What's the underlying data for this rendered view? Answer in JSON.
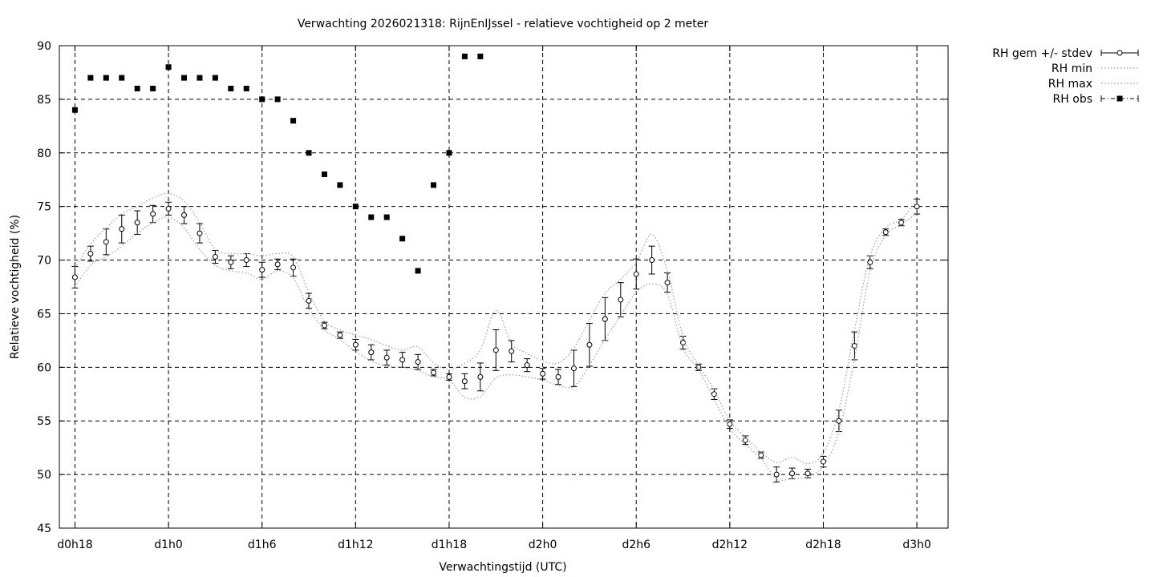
{
  "chart_data": {
    "type": "line",
    "title": "Verwachting 2026021318: RijnEnIJssel - relatieve vochtigheid op 2 meter",
    "xlabel": "Verwachtingstijd (UTC)",
    "ylabel": "Relatieve vochtigheid (%)",
    "xlim": [
      17,
      74
    ],
    "ylim": [
      45,
      90
    ],
    "grid": true,
    "legend_position": "top-right outside",
    "x_ticks": [
      {
        "x": 18,
        "label": "d0h18"
      },
      {
        "x": 24,
        "label": "d1h0"
      },
      {
        "x": 30,
        "label": "d1h6"
      },
      {
        "x": 36,
        "label": "d1h12"
      },
      {
        "x": 42,
        "label": "d1h18"
      },
      {
        "x": 48,
        "label": "d2h0"
      },
      {
        "x": 54,
        "label": "d2h6"
      },
      {
        "x": 60,
        "label": "d2h12"
      },
      {
        "x": 66,
        "label": "d2h18"
      },
      {
        "x": 72,
        "label": "d3h0"
      }
    ],
    "y_ticks": [
      45,
      50,
      55,
      60,
      65,
      70,
      75,
      80,
      85,
      90
    ],
    "series": [
      {
        "name": "RH gem +/- stdev",
        "style": "errorbars-open-circle",
        "x": [
          18,
          19,
          20,
          21,
          22,
          23,
          24,
          25,
          26,
          27,
          28,
          29,
          30,
          31,
          32,
          33,
          34,
          35,
          36,
          37,
          38,
          39,
          40,
          41,
          42,
          43,
          44,
          45,
          46,
          47,
          48,
          49,
          50,
          51,
          52,
          53,
          54,
          55,
          56,
          57,
          58,
          59,
          60,
          61,
          62,
          63,
          64,
          65,
          66,
          67,
          68,
          69,
          70,
          71,
          72
        ],
        "y": [
          68.4,
          70.6,
          71.7,
          72.9,
          73.5,
          74.3,
          74.8,
          74.2,
          72.5,
          70.3,
          69.8,
          70.0,
          69.1,
          69.6,
          69.3,
          66.2,
          63.9,
          63.0,
          62.1,
          61.4,
          60.9,
          60.7,
          60.5,
          59.5,
          59.1,
          58.7,
          59.1,
          61.6,
          61.5,
          60.2,
          59.4,
          59.1,
          59.9,
          62.1,
          64.5,
          66.3,
          68.7,
          70.0,
          67.9,
          62.3,
          60.0,
          57.5,
          54.7,
          53.2,
          51.8,
          50.0,
          50.1,
          50.1,
          51.2,
          55.0,
          62.0,
          69.8,
          72.6,
          73.5,
          75.0
        ],
        "err": [
          1.0,
          0.7,
          1.2,
          1.3,
          1.1,
          0.8,
          0.6,
          0.8,
          0.9,
          0.6,
          0.6,
          0.6,
          0.7,
          0.5,
          0.8,
          0.7,
          0.3,
          0.3,
          0.5,
          0.7,
          0.7,
          0.7,
          0.7,
          0.3,
          0.3,
          0.7,
          1.3,
          1.9,
          1.0,
          0.6,
          0.5,
          0.7,
          1.7,
          2.0,
          2.0,
          1.6,
          1.4,
          1.3,
          0.9,
          0.6,
          0.3,
          0.5,
          0.4,
          0.4,
          0.3,
          0.7,
          0.5,
          0.4,
          0.5,
          1.0,
          1.3,
          0.6,
          0.3,
          0.3,
          0.7
        ]
      },
      {
        "name": "RH min",
        "style": "dotted-line",
        "x": [
          18,
          19,
          20,
          21,
          22,
          23,
          24,
          25,
          26,
          27,
          28,
          29,
          30,
          31,
          32,
          33,
          34,
          35,
          36,
          37,
          38,
          39,
          40,
          41,
          42,
          43,
          44,
          45,
          46,
          47,
          48,
          49,
          50,
          51,
          52,
          53,
          54,
          55,
          56,
          57,
          58,
          59,
          60,
          61,
          62,
          63,
          64,
          65,
          66,
          67,
          68,
          69,
          70,
          71,
          72
        ],
        "y": [
          67.5,
          69.5,
          70.3,
          71.3,
          72.5,
          73.5,
          74.0,
          73.0,
          71.0,
          69.5,
          69.0,
          68.8,
          68.2,
          69.0,
          68.3,
          65.5,
          63.5,
          62.6,
          61.5,
          60.6,
          60.1,
          60.0,
          59.7,
          59.1,
          58.8,
          57.2,
          57.3,
          59.0,
          59.3,
          59.1,
          58.8,
          58.3,
          58.2,
          60.2,
          62.6,
          64.8,
          67.0,
          67.8,
          66.8,
          61.8,
          59.8,
          57.0,
          54.3,
          52.8,
          51.5,
          49.6,
          49.6,
          49.8,
          50.8,
          54.0,
          60.8,
          69.0,
          72.3,
          73.3,
          74.4
        ]
      },
      {
        "name": "RH max",
        "style": "dotted-line",
        "x": [
          18,
          19,
          20,
          21,
          22,
          23,
          24,
          25,
          26,
          27,
          28,
          29,
          30,
          31,
          32,
          33,
          34,
          35,
          36,
          37,
          38,
          39,
          40,
          41,
          42,
          43,
          44,
          45,
          46,
          47,
          48,
          49,
          50,
          51,
          52,
          53,
          54,
          55,
          56,
          57,
          58,
          59,
          60,
          61,
          62,
          63,
          64,
          65,
          66,
          67,
          68,
          69,
          70,
          71,
          72
        ],
        "y": [
          69.3,
          71.5,
          73.0,
          74.3,
          75.0,
          75.8,
          76.2,
          75.5,
          73.5,
          71.0,
          70.6,
          70.6,
          70.4,
          70.6,
          70.3,
          67.0,
          64.3,
          63.5,
          63.0,
          62.6,
          62.0,
          61.6,
          61.9,
          60.4,
          59.8,
          60.4,
          61.6,
          65.3,
          62.2,
          61.3,
          60.6,
          60.4,
          61.8,
          64.4,
          66.9,
          68.2,
          69.8,
          72.4,
          69.0,
          62.9,
          60.2,
          57.9,
          55.0,
          53.5,
          52.1,
          51.1,
          51.6,
          51.0,
          52.0,
          56.0,
          63.5,
          70.4,
          73.0,
          73.8,
          75.6
        ]
      },
      {
        "name": "RH obs",
        "style": "filled-square",
        "x": [
          18,
          19,
          20,
          21,
          22,
          23,
          24,
          25,
          26,
          27,
          28,
          29,
          30,
          31,
          32,
          33,
          34,
          35,
          36,
          37,
          38,
          39,
          40,
          41,
          42,
          43,
          44
        ],
        "y": [
          84,
          87,
          87,
          87,
          86,
          86,
          88,
          87,
          87,
          87,
          86,
          86,
          85,
          85,
          83,
          80,
          78,
          77,
          75,
          74,
          74,
          72,
          69,
          77,
          80,
          89,
          89
        ]
      }
    ]
  }
}
